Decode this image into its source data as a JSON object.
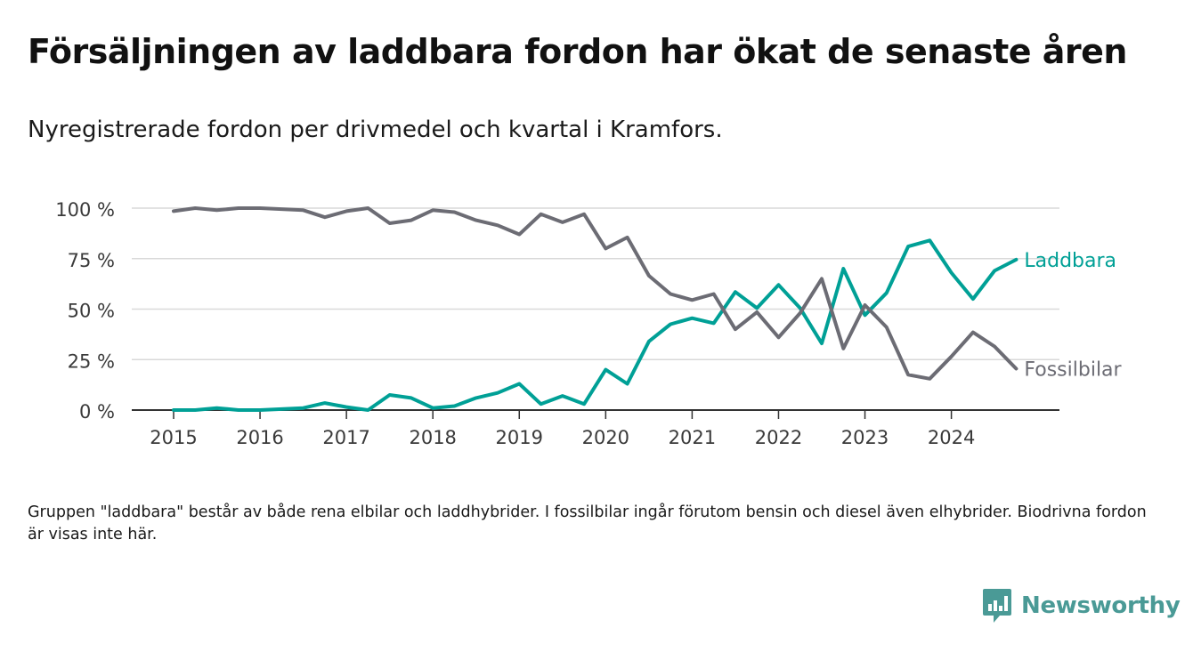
{
  "header": {
    "title": "Försäljningen av laddbara fordon har ökat de senaste åren",
    "subtitle": "Nyregistrerade fordon per drivmedel och kvartal i Kramfors."
  },
  "footnote": "Gruppen \"laddbara\" består av både rena elbilar och laddhybrider. I fossilbilar ingår förutom bensin och diesel även elhybrider. Biodrivna fordon är visas inte här.",
  "brand": {
    "name": "Newsworthy",
    "color": "#4a9a96"
  },
  "chart_data": {
    "type": "line",
    "title": "Försäljningen av laddbara fordon har ökat de senaste åren",
    "xlabel": "",
    "ylabel": "",
    "ylim": [
      0,
      100
    ],
    "yticks": [
      0,
      25,
      50,
      75,
      100
    ],
    "ytick_labels": [
      "0 %",
      "25 %",
      "50 %",
      "75 %",
      "100 %"
    ],
    "xlim": [
      2015,
      2025.2
    ],
    "xticks": [
      2015,
      2016,
      2017,
      2018,
      2019,
      2020,
      2021,
      2022,
      2023,
      2024
    ],
    "xtick_labels": [
      "2015",
      "2016",
      "2017",
      "2018",
      "2019",
      "2020",
      "2021",
      "2022",
      "2023",
      "2024"
    ],
    "grid": true,
    "x": [
      2015,
      2015.25,
      2015.5,
      2015.75,
      2016,
      2016.25,
      2016.5,
      2016.75,
      2017,
      2017.25,
      2017.5,
      2017.75,
      2018,
      2018.25,
      2018.5,
      2018.75,
      2019,
      2019.25,
      2019.5,
      2019.75,
      2020,
      2020.25,
      2020.5,
      2020.75,
      2021,
      2021.25,
      2021.5,
      2021.75,
      2022,
      2022.25,
      2022.5,
      2022.75,
      2023,
      2023.25,
      2023.5,
      2023.75,
      2024,
      2024.25,
      2024.5,
      2024.75
    ],
    "series": [
      {
        "name": "Laddbara",
        "color": "#00a096",
        "values": [
          0,
          0,
          1,
          0,
          0,
          0.5,
          1,
          3.5,
          1.5,
          0,
          7.5,
          6,
          1,
          2,
          6,
          8.5,
          13,
          3,
          7,
          3,
          20,
          13,
          34,
          42.5,
          45.5,
          43,
          58.5,
          50.5,
          62,
          50.5,
          33,
          70,
          47,
          58,
          81,
          84,
          68,
          55,
          69,
          74.5
        ]
      },
      {
        "name": "Fossilbilar",
        "color": "#6c6c74",
        "values": [
          98.5,
          100,
          99,
          100,
          100,
          99.5,
          99,
          95.5,
          98.5,
          100,
          92.5,
          94,
          99,
          98,
          94,
          91.5,
          87,
          97,
          93,
          97,
          80,
          85.5,
          66.5,
          57.5,
          54.5,
          57.5,
          40,
          48.5,
          36,
          48,
          65,
          30.5,
          52,
          41,
          17.5,
          15.5,
          26.5,
          38.5,
          31.5,
          20.5
        ]
      }
    ]
  }
}
